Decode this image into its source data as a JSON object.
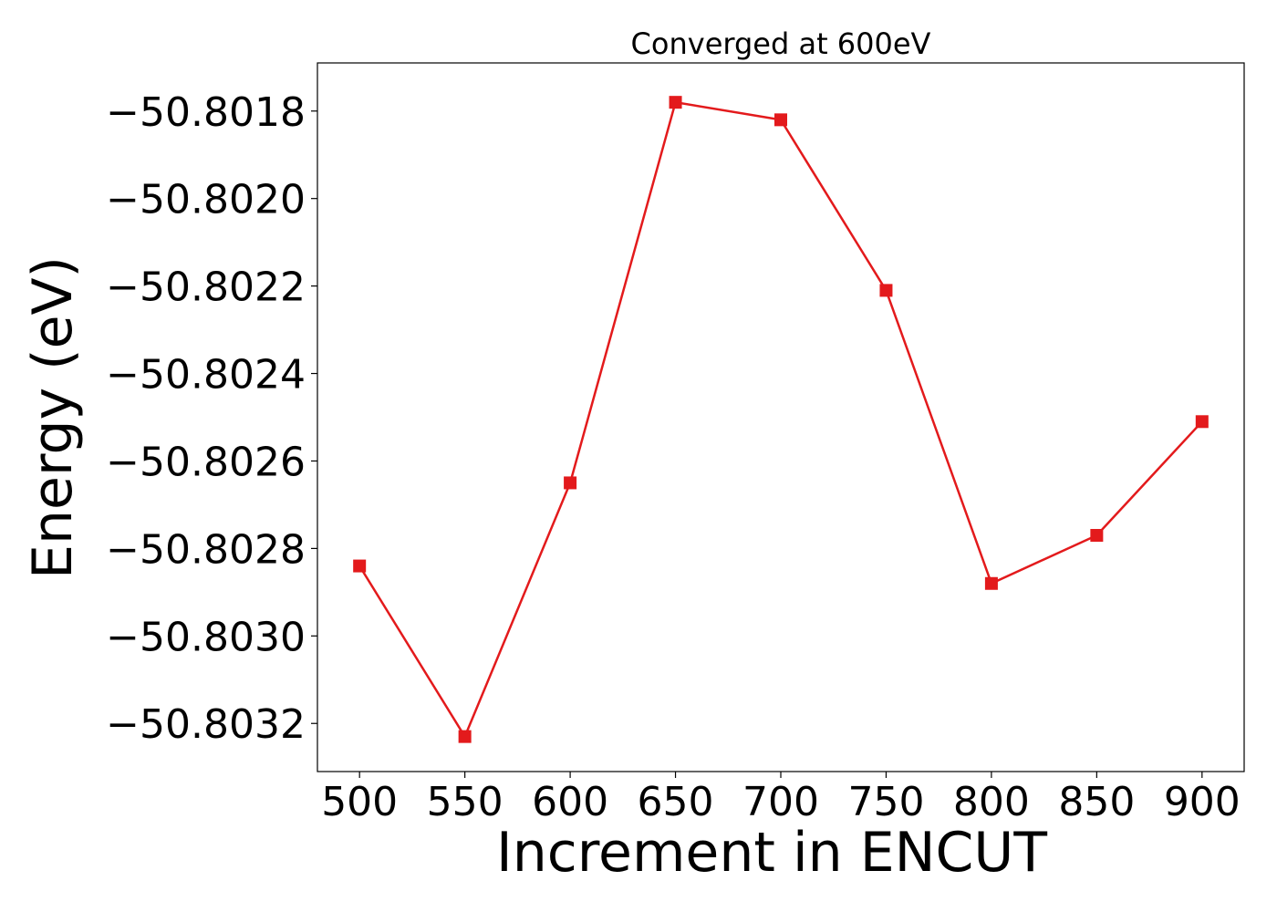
{
  "chart_data": {
    "type": "line",
    "title": "Converged at 600eV",
    "xlabel": "Increment in ENCUT",
    "ylabel": "Energy (eV)",
    "x": [
      500,
      550,
      600,
      650,
      700,
      750,
      800,
      850,
      900
    ],
    "series": [
      {
        "values": [
          -50.80284,
          -50.80323,
          -50.80265,
          -50.80178,
          -50.80182,
          -50.80221,
          -50.80288,
          -50.80277,
          -50.80251
        ],
        "color": "#e31a1c",
        "marker": "square"
      }
    ],
    "xlim": [
      480,
      920
    ],
    "ylim": [
      -50.80331,
      -50.80169
    ],
    "xticks": [
      {
        "value": 500,
        "label": "500"
      },
      {
        "value": 550,
        "label": "550"
      },
      {
        "value": 600,
        "label": "600"
      },
      {
        "value": 650,
        "label": "650"
      },
      {
        "value": 700,
        "label": "700"
      },
      {
        "value": 750,
        "label": "750"
      },
      {
        "value": 800,
        "label": "800"
      },
      {
        "value": 850,
        "label": "850"
      },
      {
        "value": 900,
        "label": "900"
      }
    ],
    "yticks": [
      {
        "value": -50.8018,
        "label": "−50.8018"
      },
      {
        "value": -50.802,
        "label": "−50.8020"
      },
      {
        "value": -50.8022,
        "label": "−50.8022"
      },
      {
        "value": -50.8024,
        "label": "−50.8024"
      },
      {
        "value": -50.8026,
        "label": "−50.8026"
      },
      {
        "value": -50.8028,
        "label": "−50.8028"
      },
      {
        "value": -50.803,
        "label": "−50.8030"
      },
      {
        "value": -50.8032,
        "label": "−50.8032"
      }
    ],
    "grid": false,
    "legend": "none"
  }
}
